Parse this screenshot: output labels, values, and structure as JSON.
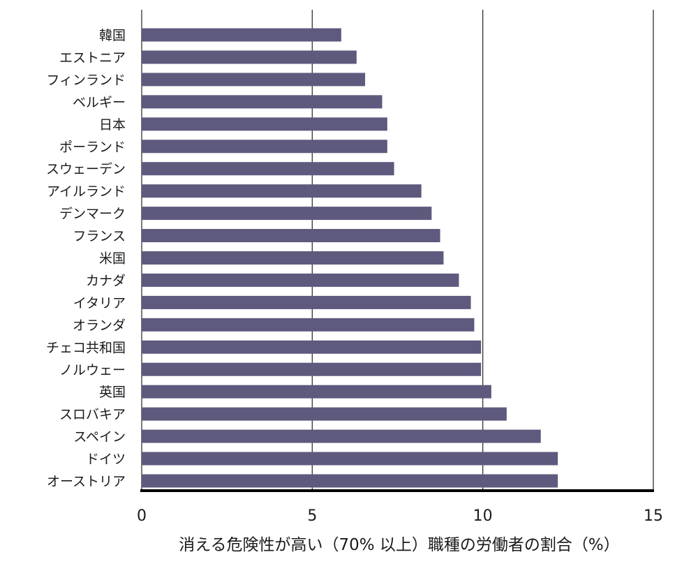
{
  "chart_data": {
    "type": "bar",
    "orientation": "horizontal",
    "categories": [
      "韓国",
      "エストニア",
      "フィンランド",
      "ベルギー",
      "日本",
      "ポーランド",
      "スウェーデン",
      "アイルランド",
      "デンマーク",
      "フランス",
      "米国",
      "カナダ",
      "イタリア",
      "オランダ",
      "チェコ共和国",
      "ノルウェー",
      "英国",
      "スロバキア",
      "スペイン",
      "ドイツ",
      "オーストリア"
    ],
    "values": [
      5.85,
      6.3,
      6.55,
      7.05,
      7.2,
      7.2,
      7.4,
      8.2,
      8.5,
      8.75,
      8.85,
      9.3,
      9.65,
      9.75,
      9.95,
      9.95,
      10.25,
      10.7,
      11.7,
      12.2,
      12.2
    ],
    "xlabel": "消える危険性が高い（70% 以上）職種の労働者の割合（%）",
    "xlim": [
      0,
      15
    ],
    "xticks": [
      0,
      5,
      10,
      15
    ],
    "grid": true,
    "bar_color": "#5e5a7e"
  }
}
